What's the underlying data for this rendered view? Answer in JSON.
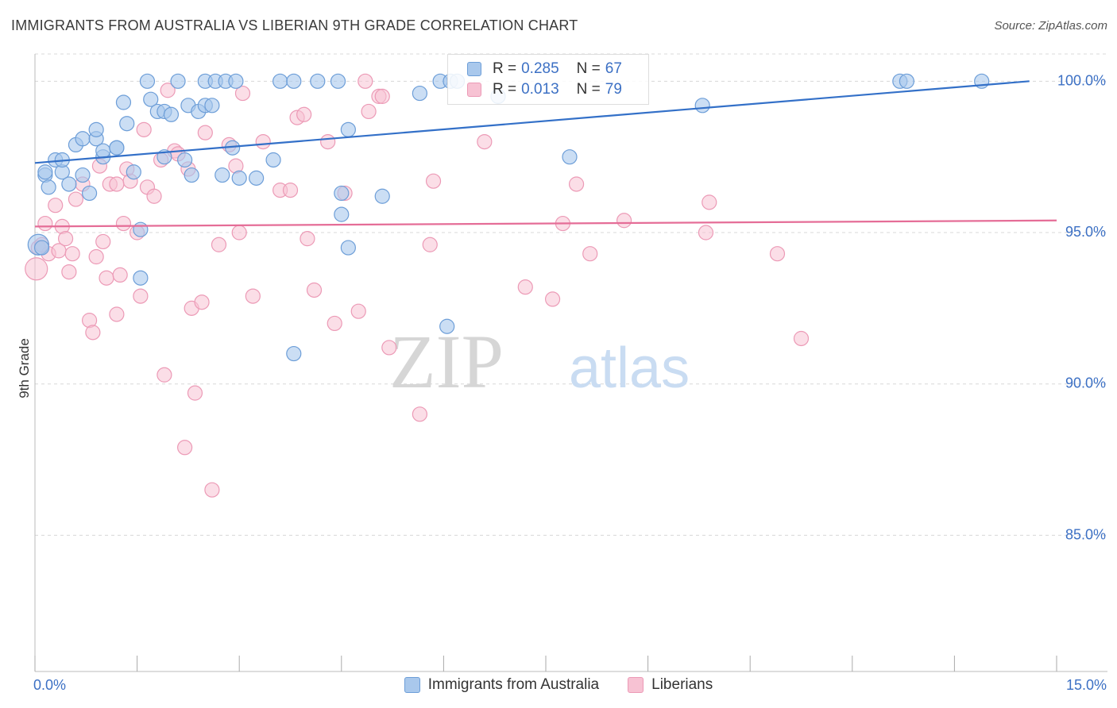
{
  "title": "IMMIGRANTS FROM AUSTRALIA VS LIBERIAN 9TH GRADE CORRELATION CHART",
  "source": "Source: ZipAtlas.com",
  "watermark": {
    "zip": "ZIP",
    "atlas": "atlas"
  },
  "colors": {
    "blue_fill": "#a9c8ec",
    "blue_stroke": "#6d9ed8",
    "blue_line": "#3370c8",
    "pink_fill": "#f7c2d3",
    "pink_stroke": "#ec9ab6",
    "pink_line": "#e56d97",
    "tick_label": "#3c70c4",
    "grid": "#d8d8d8"
  },
  "legend": {
    "r_label": "R =",
    "n_label": "N =",
    "entries": [
      {
        "r": "0.285",
        "n": "67"
      },
      {
        "r": "0.013",
        "n": "79"
      }
    ]
  },
  "bottom_legend": [
    "Immigrants from Australia",
    "Liberians"
  ],
  "chart_data": {
    "type": "scatter",
    "xlabel": "",
    "ylabel": "9th Grade",
    "xlim": [
      0,
      15
    ],
    "ylim": [
      80.5,
      100.9
    ],
    "x_tick_labels": [
      "0.0%",
      "15.0%"
    ],
    "x_ticks": [
      0,
      1.5,
      3,
      4.5,
      6,
      7.5,
      9,
      10.5,
      12,
      13.5,
      15
    ],
    "y_ticks": [
      85,
      90,
      95,
      100
    ],
    "y_tick_labels": [
      "85.0%",
      "90.0%",
      "95.0%",
      "100.0%"
    ],
    "grid": true,
    "legend_position": "top-center",
    "series": [
      {
        "name": "Immigrants from Australia",
        "r": 0.285,
        "n": 67,
        "trend": {
          "x": [
            0,
            14.6
          ],
          "y": [
            97.3,
            100.0
          ]
        },
        "points": [
          [
            0.05,
            94.6
          ],
          [
            0.1,
            94.5
          ],
          [
            0.15,
            96.9
          ],
          [
            0.2,
            96.5
          ],
          [
            0.3,
            97.4
          ],
          [
            0.4,
            97.0
          ],
          [
            0.4,
            97.4
          ],
          [
            0.5,
            96.6
          ],
          [
            0.6,
            97.9
          ],
          [
            0.7,
            96.9
          ],
          [
            0.7,
            98.1
          ],
          [
            0.8,
            96.3
          ],
          [
            0.9,
            98.1
          ],
          [
            0.9,
            98.4
          ],
          [
            1.0,
            97.5
          ],
          [
            1.0,
            97.7
          ],
          [
            1.2,
            97.8
          ],
          [
            1.2,
            97.8
          ],
          [
            1.3,
            99.3
          ],
          [
            1.35,
            98.6
          ],
          [
            1.45,
            97.0
          ],
          [
            1.55,
            95.1
          ],
          [
            1.55,
            93.5
          ],
          [
            1.65,
            100.0
          ],
          [
            1.7,
            99.4
          ],
          [
            1.8,
            99.0
          ],
          [
            1.9,
            99.0
          ],
          [
            1.9,
            97.5
          ],
          [
            2.0,
            98.9
          ],
          [
            2.1,
            100.0
          ],
          [
            2.2,
            97.4
          ],
          [
            2.25,
            99.2
          ],
          [
            2.3,
            96.9
          ],
          [
            2.4,
            99.0
          ],
          [
            2.5,
            100.0
          ],
          [
            2.5,
            99.2
          ],
          [
            2.6,
            99.2
          ],
          [
            2.65,
            100.0
          ],
          [
            2.8,
            100.0
          ],
          [
            2.75,
            96.9
          ],
          [
            2.9,
            97.8
          ],
          [
            2.95,
            100.0
          ],
          [
            3.0,
            96.8
          ],
          [
            3.25,
            96.8
          ],
          [
            3.5,
            97.4
          ],
          [
            3.6,
            100.0
          ],
          [
            3.8,
            100.0
          ],
          [
            3.8,
            91.0
          ],
          [
            4.15,
            100.0
          ],
          [
            4.45,
            100.0
          ],
          [
            4.5,
            95.6
          ],
          [
            4.5,
            96.3
          ],
          [
            4.6,
            94.5
          ],
          [
            4.6,
            98.4
          ],
          [
            5.1,
            96.2
          ],
          [
            5.65,
            99.6
          ],
          [
            5.95,
            100.0
          ],
          [
            6.05,
            91.9
          ],
          [
            6.1,
            100.0
          ],
          [
            6.2,
            100.0
          ],
          [
            6.8,
            99.5
          ],
          [
            7.85,
            97.5
          ],
          [
            9.8,
            99.2
          ],
          [
            12.7,
            100.0
          ],
          [
            12.8,
            100.0
          ],
          [
            13.9,
            100.0
          ],
          [
            0.15,
            97.0
          ]
        ]
      },
      {
        "name": "Liberians",
        "r": 0.013,
        "n": 79,
        "trend": {
          "x": [
            0,
            15
          ],
          "y": [
            95.2,
            95.4
          ]
        },
        "points": [
          [
            0.02,
            93.8
          ],
          [
            0.05,
            94.5
          ],
          [
            0.15,
            95.3
          ],
          [
            0.2,
            94.3
          ],
          [
            0.3,
            95.9
          ],
          [
            0.35,
            94.4
          ],
          [
            0.4,
            95.2
          ],
          [
            0.45,
            94.8
          ],
          [
            0.5,
            93.7
          ],
          [
            0.55,
            94.3
          ],
          [
            0.6,
            96.1
          ],
          [
            0.7,
            96.6
          ],
          [
            0.8,
            92.1
          ],
          [
            0.85,
            91.7
          ],
          [
            0.9,
            94.2
          ],
          [
            0.95,
            97.2
          ],
          [
            1.0,
            94.7
          ],
          [
            1.05,
            93.5
          ],
          [
            1.1,
            96.6
          ],
          [
            1.2,
            92.3
          ],
          [
            1.25,
            93.6
          ],
          [
            1.3,
            95.3
          ],
          [
            1.35,
            97.1
          ],
          [
            1.4,
            96.7
          ],
          [
            1.5,
            95.0
          ],
          [
            1.55,
            92.9
          ],
          [
            1.6,
            98.4
          ],
          [
            1.65,
            96.5
          ],
          [
            1.75,
            96.2
          ],
          [
            1.85,
            97.4
          ],
          [
            1.9,
            90.3
          ],
          [
            1.95,
            99.7
          ],
          [
            2.05,
            97.7
          ],
          [
            2.1,
            97.6
          ],
          [
            2.2,
            87.9
          ],
          [
            2.25,
            97.1
          ],
          [
            2.3,
            92.5
          ],
          [
            2.35,
            89.7
          ],
          [
            2.45,
            92.7
          ],
          [
            2.5,
            98.3
          ],
          [
            2.6,
            86.5
          ],
          [
            2.7,
            94.6
          ],
          [
            2.85,
            97.9
          ],
          [
            2.95,
            97.2
          ],
          [
            3.0,
            95.0
          ],
          [
            3.05,
            99.6
          ],
          [
            3.2,
            92.9
          ],
          [
            3.35,
            98.0
          ],
          [
            3.6,
            96.4
          ],
          [
            3.75,
            96.4
          ],
          [
            3.85,
            98.8
          ],
          [
            3.95,
            98.9
          ],
          [
            4.0,
            94.8
          ],
          [
            4.1,
            93.1
          ],
          [
            4.3,
            98.0
          ],
          [
            4.4,
            92.0
          ],
          [
            4.55,
            96.3
          ],
          [
            4.75,
            92.4
          ],
          [
            4.85,
            100.0
          ],
          [
            4.9,
            99.0
          ],
          [
            5.05,
            99.5
          ],
          [
            5.1,
            99.5
          ],
          [
            5.2,
            91.2
          ],
          [
            5.65,
            89.0
          ],
          [
            5.8,
            94.6
          ],
          [
            5.85,
            96.7
          ],
          [
            6.6,
            98.0
          ],
          [
            7.2,
            93.2
          ],
          [
            7.6,
            92.8
          ],
          [
            7.75,
            95.3
          ],
          [
            7.95,
            96.6
          ],
          [
            8.15,
            94.3
          ],
          [
            8.65,
            95.4
          ],
          [
            9.85,
            95.0
          ],
          [
            9.9,
            96.0
          ],
          [
            10.9,
            94.3
          ],
          [
            11.25,
            91.5
          ],
          [
            0.1,
            94.6
          ],
          [
            1.2,
            96.6
          ]
        ]
      }
    ]
  }
}
